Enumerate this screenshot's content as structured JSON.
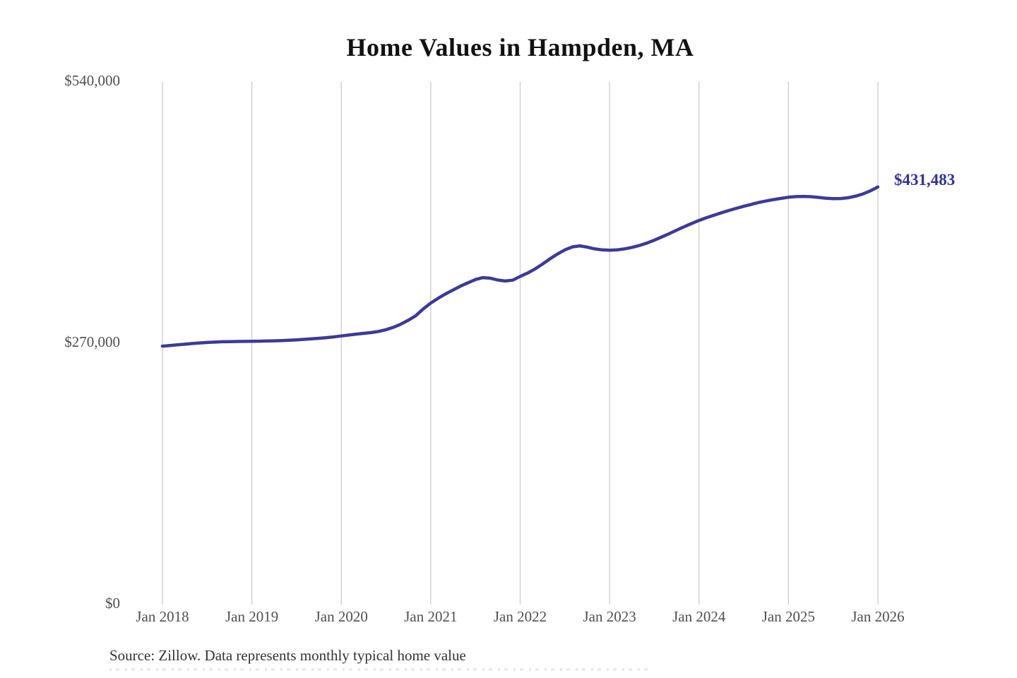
{
  "title": "Home Values in Hampden, MA",
  "end_value_label": "$431,483",
  "source_note": "Source: Zillow. Data represents monthly typical home value",
  "colors": {
    "line": "#3d3a97",
    "end_label": "#31319c",
    "gridline": "#cccccc",
    "tick_text": "#4f4f4f",
    "title_text": "#111111",
    "source_text": "#333333"
  },
  "chart_data": {
    "type": "line",
    "title": "Home Values in Hampden, MA",
    "xlabel": "",
    "ylabel": "",
    "ylim": [
      0,
      540000
    ],
    "grid": "vertical-only",
    "legend": "none",
    "y_ticks": [
      {
        "label": "$540,000",
        "value": 540000
      },
      {
        "label": "$270,000",
        "value": 270000
      },
      {
        "label": "$0",
        "value": 0
      }
    ],
    "x_ticks": [
      {
        "label": "Jan 2018",
        "month_index": 0
      },
      {
        "label": "Jan 2019",
        "month_index": 12
      },
      {
        "label": "Jan 2020",
        "month_index": 24
      },
      {
        "label": "Jan 2021",
        "month_index": 36
      },
      {
        "label": "Jan 2022",
        "month_index": 48
      },
      {
        "label": "Jan 2023",
        "month_index": 60
      },
      {
        "label": "Jan 2024",
        "month_index": 72
      },
      {
        "label": "Jan 2025",
        "month_index": 84
      },
      {
        "label": "Jan 2026",
        "month_index": 96
      }
    ],
    "series": [
      {
        "name": "Monthly typical home value",
        "start": "Jan 2018",
        "end": "Jan 2026",
        "interval": "monthly",
        "values": [
          267000,
          267600,
          268300,
          269000,
          269700,
          270300,
          270800,
          271200,
          271500,
          271700,
          271800,
          271900,
          272000,
          272100,
          272300,
          272500,
          272800,
          273100,
          273500,
          274000,
          274500,
          275100,
          275800,
          276600,
          277500,
          278500,
          279400,
          280200,
          281000,
          282200,
          284000,
          286500,
          289800,
          293800,
          298500,
          305500,
          311500,
          316500,
          321000,
          325000,
          329000,
          332500,
          335800,
          337800,
          337200,
          335300,
          334300,
          335200,
          339000,
          342500,
          346800,
          351800,
          357200,
          362200,
          366500,
          369500,
          370600,
          369300,
          367500,
          366500,
          366200,
          366500,
          367500,
          369000,
          371000,
          373500,
          376500,
          379800,
          383200,
          386800,
          390300,
          393700,
          396900,
          399700,
          402300,
          404800,
          407200,
          409400,
          411500,
          413500,
          415400,
          417000,
          418400,
          419700,
          420800,
          421500,
          421700,
          421400,
          420700,
          419900,
          419400,
          419500,
          420300,
          421900,
          424300,
          427500,
          431483
        ]
      }
    ],
    "end_value_label": "$431,483",
    "source": "Source: Zillow. Data represents monthly typical home value"
  }
}
